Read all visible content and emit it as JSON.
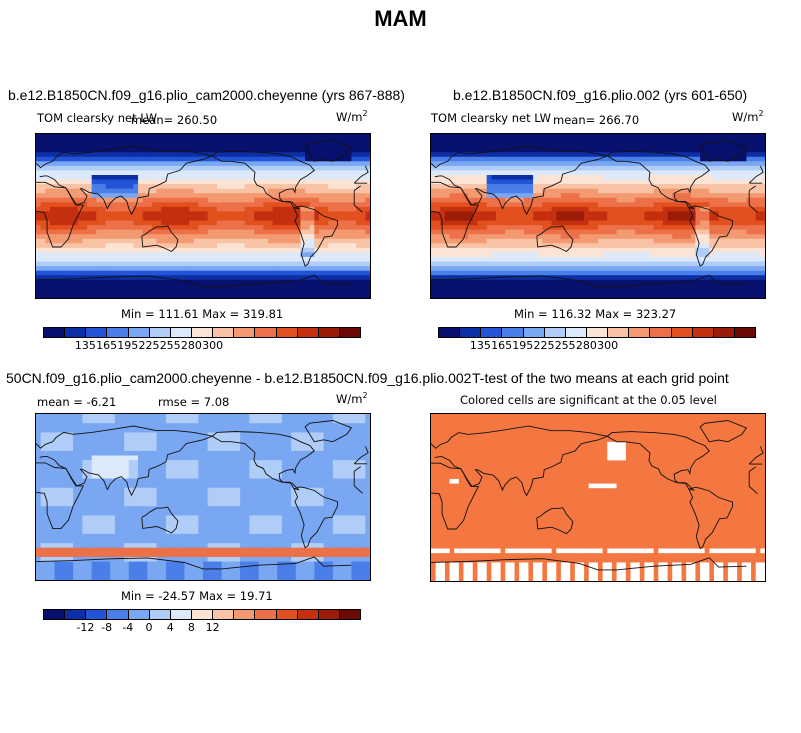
{
  "figure": {
    "title": "MAM"
  },
  "colors": {
    "levels": [
      "#08106e",
      "#0d2fa5",
      "#2454d6",
      "#4a7ee8",
      "#7aa7f2",
      "#b0cdf8",
      "#dce9fb",
      "#fbe4d6",
      "#f9c3a6",
      "#f39a72",
      "#ec7048",
      "#e2501f",
      "#c4300f",
      "#9c1a08",
      "#6b0a05"
    ],
    "ttest_sig": "#f47741",
    "coast": "#111111"
  },
  "chart_data": [
    {
      "type": "heatmap",
      "title": "b.e12.B1850CN.f09_g16.plio_cam2000.cheyenne (yrs 867-888)",
      "subtitle": "TOM clearsky net LW",
      "mean_label": "mean= 260.50",
      "units": "W/m",
      "units_exp": "2",
      "stats_label": "Min = 111.61 Max = 319.81",
      "min": 111.61,
      "max": 319.81,
      "mean": 260.5,
      "colorbar_ticks": [
        "135",
        "165",
        "195",
        "225",
        "255",
        "280",
        "300"
      ]
    },
    {
      "type": "heatmap",
      "title": "b.e12.B1850CN.f09_g16.plio.002 (yrs 601-650)",
      "subtitle": "TOM clearsky net LW",
      "mean_label": "mean= 266.70",
      "units": "W/m",
      "units_exp": "2",
      "stats_label": "Min = 116.32 Max = 323.27",
      "min": 116.32,
      "max": 323.27,
      "mean": 266.7,
      "colorbar_ticks": [
        "135",
        "165",
        "195",
        "225",
        "255",
        "280",
        "300"
      ]
    },
    {
      "type": "heatmap",
      "title": "50CN.f09_g16.plio_cam2000.cheyenne - b.e12.B1850CN.f09_g16.plio.002",
      "mean_label": "mean =   -6.21",
      "rmse_label": "rmse =    7.08",
      "units": "W/m",
      "units_exp": "2",
      "stats_label": "Min = -24.57 Max =  19.71",
      "min": -24.57,
      "max": 19.71,
      "mean": -6.21,
      "rmse": 7.08,
      "colorbar_ticks": [
        "-12",
        "-8",
        "-4",
        "0",
        "4",
        "8",
        "12"
      ]
    },
    {
      "type": "heatmap",
      "title": "T-test of the two means at each grid point",
      "subtitle": "Colored cells are significant at the 0.05 level",
      "significance_level": 0.05
    }
  ]
}
